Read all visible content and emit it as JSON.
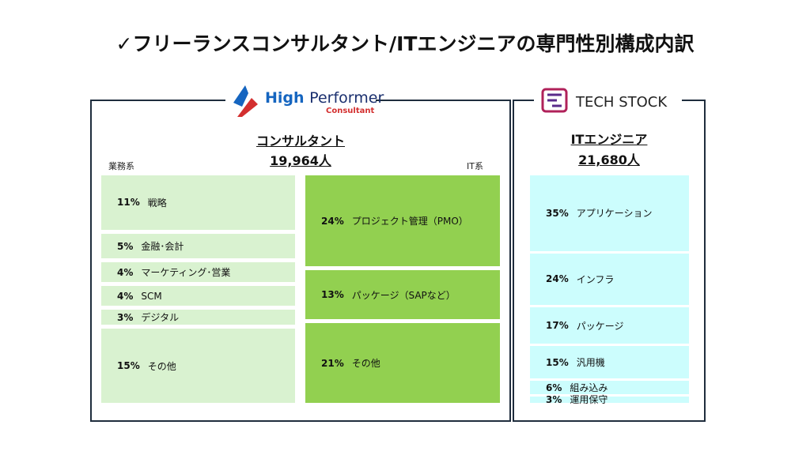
{
  "title": "✓フリーランスコンサルタント/ITエンジニアの専門性別構成内訳",
  "consultant": {
    "logo_text_1": "High",
    "logo_text_2": "Performer",
    "logo_subtext": "Consultant",
    "heading": "コンサルタント",
    "count": "19,964人",
    "business_label": "業務系",
    "it_label": "IT系",
    "business": [
      {
        "value": 11,
        "value_label": "11%",
        "name": "戦略"
      },
      {
        "value": 5,
        "value_label": "5%",
        "name": "金融･会計"
      },
      {
        "value": 4,
        "value_label": "4%",
        "name": "マーケティング･営業"
      },
      {
        "value": 4,
        "value_label": "4%",
        "name": "SCM"
      },
      {
        "value": 3,
        "value_label": "3%",
        "name": "デジタル"
      },
      {
        "value": 15,
        "value_label": "15%",
        "name": "その他"
      }
    ],
    "it": [
      {
        "value": 24,
        "value_label": "24%",
        "name": "プロジェクト管理（PMO）"
      },
      {
        "value": 13,
        "value_label": "13%",
        "name": "パッケージ（SAPなど）"
      },
      {
        "value": 21,
        "value_label": "21%",
        "name": "その他"
      }
    ]
  },
  "engineer": {
    "logo_text": "TECH STOCK",
    "heading": "ITエンジニア",
    "count": "21,680人",
    "segments": [
      {
        "value": 35,
        "value_label": "35%",
        "name": "アプリケーション"
      },
      {
        "value": 24,
        "value_label": "24%",
        "name": "インフラ"
      },
      {
        "value": 17,
        "value_label": "17%",
        "name": "パッケージ"
      },
      {
        "value": 15,
        "value_label": "15%",
        "name": "汎用機"
      },
      {
        "value": 6,
        "value_label": "6%",
        "name": "組み込み"
      },
      {
        "value": 3,
        "value_label": "3%",
        "name": "運用保守"
      }
    ]
  }
}
